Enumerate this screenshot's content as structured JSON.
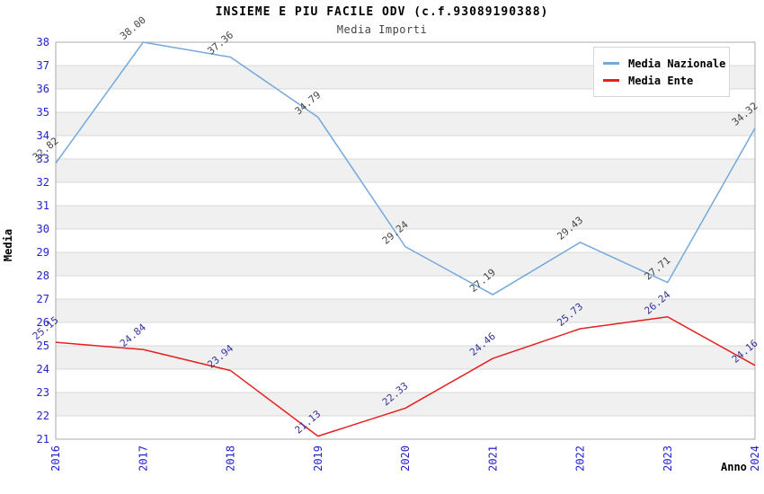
{
  "title": "INSIEME E PIU FACILE ODV (c.f.93089190388)",
  "subtitle": "Media Importi",
  "chart_data": {
    "type": "line",
    "categories": [
      "2016",
      "2017",
      "2018",
      "2019",
      "2020",
      "2021",
      "2022",
      "2023",
      "2024"
    ],
    "series": [
      {
        "name": "Media Nazionale",
        "color": "#74a9dc",
        "label_color": "#444444",
        "values": [
          32.82,
          38.0,
          37.36,
          34.79,
          29.24,
          27.19,
          29.43,
          27.71,
          34.32
        ]
      },
      {
        "name": "Media Ente",
        "color": "#e62020",
        "label_color": "#333399",
        "values": [
          25.15,
          24.84,
          23.94,
          21.13,
          22.33,
          24.46,
          25.73,
          26.24,
          24.16
        ]
      }
    ],
    "xlabel": "Anno",
    "ylabel": "Media",
    "ylim": [
      21,
      38
    ],
    "ytick_step": 1,
    "grid": true,
    "legend_position": "top-right",
    "colors": {
      "tick_label": "#2222cc",
      "band_gray": "#f0f0f0",
      "band_white": "#ffffff",
      "gridline": "#d9d9d9",
      "axis": "#aaaaaa"
    }
  }
}
